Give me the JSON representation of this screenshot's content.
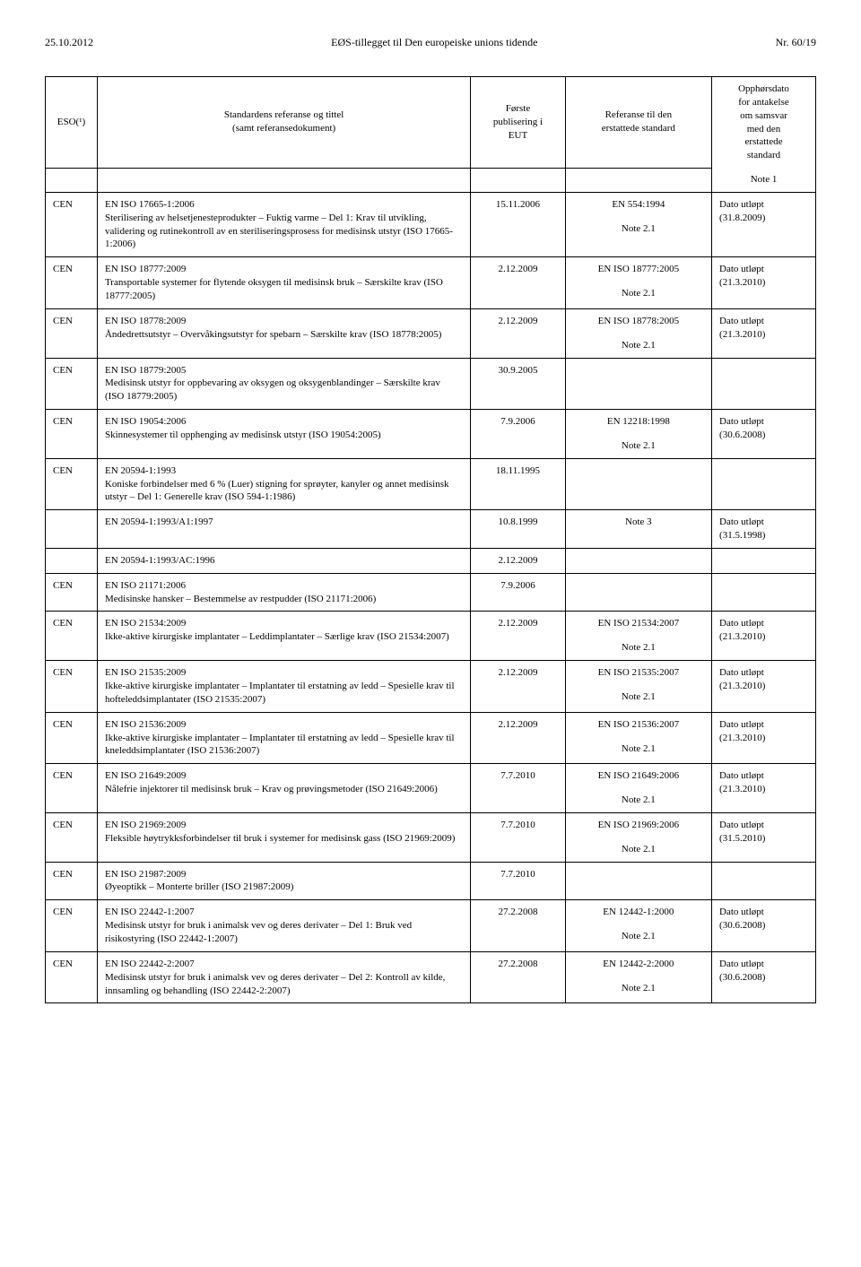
{
  "header": {
    "left": "25.10.2012",
    "center": "EØS-tillegget til Den europeiske unions tidende",
    "right": "Nr. 60/19"
  },
  "columns": {
    "eso": "ESO(¹)",
    "standard": "Standardens referanse og tittel\n(samt referansedokument)",
    "pub": "Første\npublisering i\nEUT",
    "ref": "Referanse til den\nerstattede standard",
    "opp": "Opphørsdato\nfor antakelse\nom samsvar\nmed den\nerstattede\nstandard",
    "note1": "Note 1"
  },
  "rows": [
    {
      "eso": "CEN",
      "code": "EN ISO 17665-1:2006",
      "desc": "Sterilisering av helsetjenesteprodukter – Fuktig varme – Del 1: Krav til utvikling, validering og rutinekontroll av en steriliseringsprosess for medisinsk utstyr (ISO 17665-1:2006)",
      "pub": "15.11.2006",
      "ref": "EN 554:1994",
      "refnote": "Note 2.1",
      "opp": "Dato utløpt\n(31.8.2009)"
    },
    {
      "eso": "CEN",
      "code": "EN ISO 18777:2009",
      "desc": "Transportable systemer for flytende oksygen til medisinsk bruk – Særskilte krav (ISO 18777:2005)",
      "pub": "2.12.2009",
      "ref": "EN ISO 18777:2005",
      "refnote": "Note 2.1",
      "opp": "Dato utløpt\n(21.3.2010)"
    },
    {
      "eso": "CEN",
      "code": "EN ISO 18778:2009",
      "desc": "Åndedrettsutstyr – Overvåkingsutstyr for spebarn – Særskilte krav (ISO 18778:2005)",
      "pub": "2.12.2009",
      "ref": "EN ISO 18778:2005",
      "refnote": "Note 2.1",
      "opp": "Dato utløpt\n(21.3.2010)"
    },
    {
      "eso": "CEN",
      "code": "EN ISO 18779:2005",
      "desc": "Medisinsk utstyr for oppbevaring av oksygen og oksygenblandinger – Særskilte krav\n(ISO 18779:2005)",
      "pub": "30.9.2005",
      "ref": "",
      "refnote": "",
      "opp": ""
    },
    {
      "eso": "CEN",
      "code": "EN ISO 19054:2006",
      "desc": "Skinnesystemer til opphenging av medisinsk utstyr (ISO 19054:2005)",
      "pub": "7.9.2006",
      "ref": "EN 12218:1998",
      "refnote": "Note 2.1",
      "opp": "Dato utløpt\n(30.6.2008)"
    },
    {
      "eso": "CEN",
      "code": "EN 20594-1:1993",
      "desc": "Koniske forbindelser med 6 % (Luer) stigning for sprøyter, kanyler og annet medisinsk utstyr – Del 1: Generelle krav (ISO 594-1:1986)",
      "pub": "18.11.1995",
      "ref": "",
      "refnote": "",
      "opp": ""
    },
    {
      "sub": true,
      "code": "EN 20594-1:1993/A1:1997",
      "pub": "10.8.1999",
      "ref": "Note 3",
      "opp": "Dato utløpt\n(31.5.1998)"
    },
    {
      "sub": true,
      "code": "EN 20594-1:1993/AC:1996",
      "pub": "2.12.2009",
      "ref": "",
      "opp": ""
    },
    {
      "eso": "CEN",
      "code": "EN ISO 21171:2006",
      "desc": "Medisinske hansker – Bestemmelse av restpudder (ISO 21171:2006)",
      "pub": "7.9.2006",
      "ref": "",
      "refnote": "",
      "opp": ""
    },
    {
      "eso": "CEN",
      "code": "EN ISO 21534:2009",
      "desc": "Ikke-aktive kirurgiske implantater – Leddimplantater – Særlige krav (ISO 21534:2007)",
      "pub": "2.12.2009",
      "ref": "EN ISO 21534:2007",
      "refnote": "Note 2.1",
      "opp": "Dato utløpt\n(21.3.2010)"
    },
    {
      "eso": "CEN",
      "code": "EN ISO 21535:2009",
      "desc": "Ikke-aktive kirurgiske implantater – Implantater til erstatning av ledd – Spesielle krav til hofteleddsimplantater (ISO 21535:2007)",
      "pub": "2.12.2009",
      "ref": "EN ISO 21535:2007",
      "refnote": "Note 2.1",
      "opp": "Dato utløpt\n(21.3.2010)"
    },
    {
      "eso": "CEN",
      "code": "EN ISO 21536:2009",
      "desc": "Ikke-aktive kirurgiske implantater – Implantater til erstatning av ledd – Spesielle krav til kneleddsimplantater (ISO 21536:2007)",
      "pub": "2.12.2009",
      "ref": "EN ISO 21536:2007",
      "refnote": "Note 2.1",
      "opp": "Dato utløpt\n(21.3.2010)"
    },
    {
      "eso": "CEN",
      "code": "EN ISO 21649:2009",
      "desc": "Nålefrie injektorer til medisinsk bruk – Krav og prøvingsmetoder (ISO 21649:2006)",
      "pub": "7.7.2010",
      "ref": "EN ISO 21649:2006",
      "refnote": "Note 2.1",
      "opp": "Dato utløpt\n(21.3.2010)"
    },
    {
      "eso": "CEN",
      "code": "EN ISO 21969:2009",
      "desc": "Fleksible høytrykksforbindelser til bruk i systemer for medisinsk gass (ISO 21969:2009)",
      "pub": "7.7.2010",
      "ref": "EN ISO 21969:2006",
      "refnote": "Note 2.1",
      "opp": "Dato utløpt\n(31.5.2010)"
    },
    {
      "eso": "CEN",
      "code": "EN ISO 21987:2009",
      "desc": "Øyeoptikk – Monterte briller (ISO 21987:2009)",
      "pub": "7.7.2010",
      "ref": "",
      "refnote": "",
      "opp": ""
    },
    {
      "eso": "CEN",
      "code": "EN ISO 22442-1:2007",
      "desc": "Medisinsk utstyr for bruk i animalsk vev og deres derivater – Del 1: Bruk ved risikostyring (ISO 22442-1:2007)",
      "pub": "27.2.2008",
      "ref": "EN 12442-1:2000",
      "refnote": "Note 2.1",
      "opp": "Dato utløpt\n(30.6.2008)"
    },
    {
      "eso": "CEN",
      "code": "EN ISO 22442-2:2007",
      "desc": "Medisinsk utstyr for bruk i animalsk vev og deres derivater – Del 2: Kontroll av kilde, innsamling og behandling (ISO 22442-2:2007)",
      "pub": "27.2.2008",
      "ref": "EN 12442-2:2000",
      "refnote": "Note 2.1",
      "opp": "Dato utløpt\n(30.6.2008)"
    }
  ]
}
